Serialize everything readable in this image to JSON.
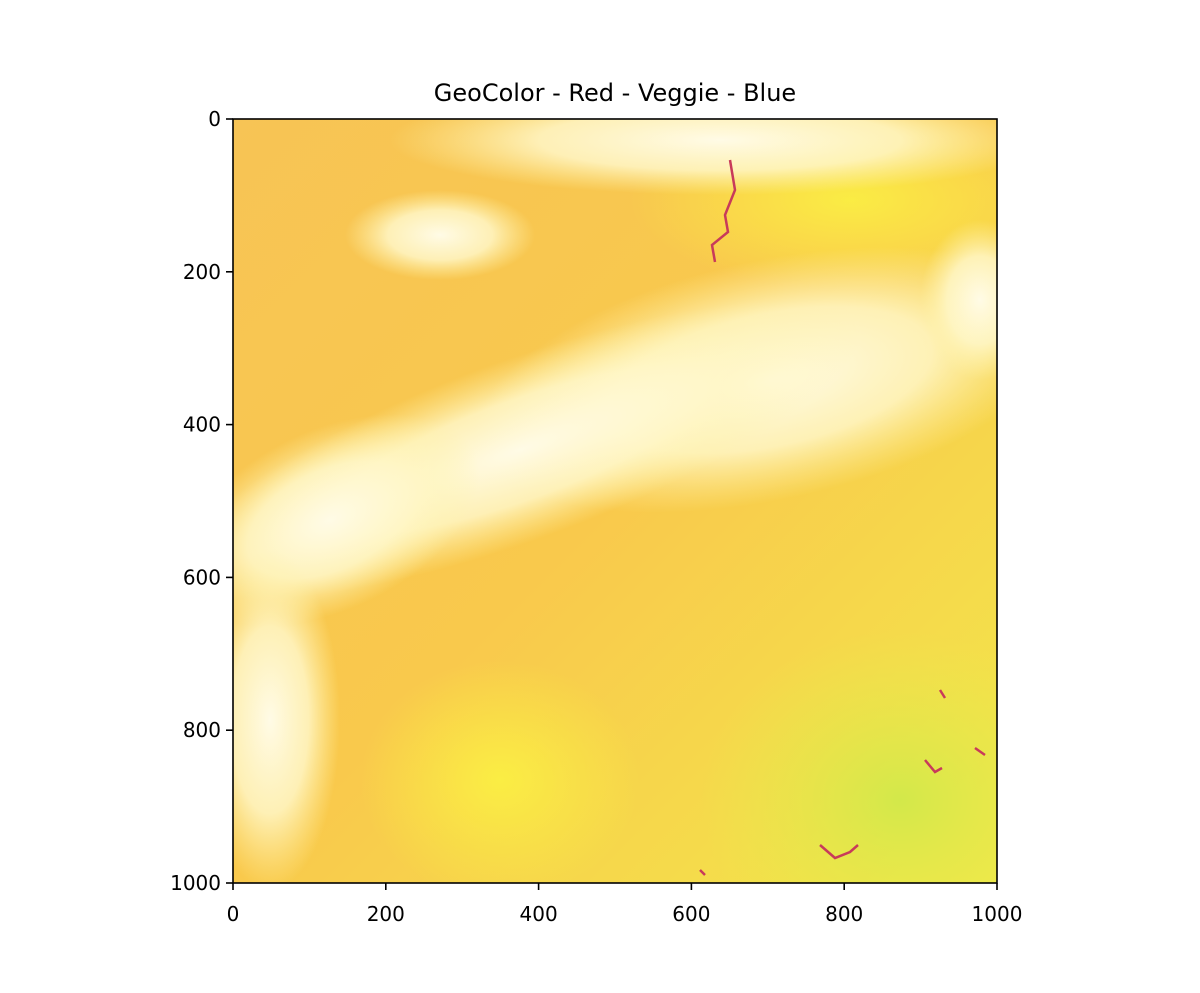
{
  "chart_data": {
    "type": "image",
    "title": "GeoColor - Red - Veggie - Blue",
    "xlim": [
      0,
      1000
    ],
    "xticks": [
      0,
      200,
      400,
      600,
      800,
      1000
    ],
    "ylim": [
      1000,
      0
    ],
    "yticks": [
      0,
      200,
      400,
      600,
      800,
      1000
    ]
  }
}
